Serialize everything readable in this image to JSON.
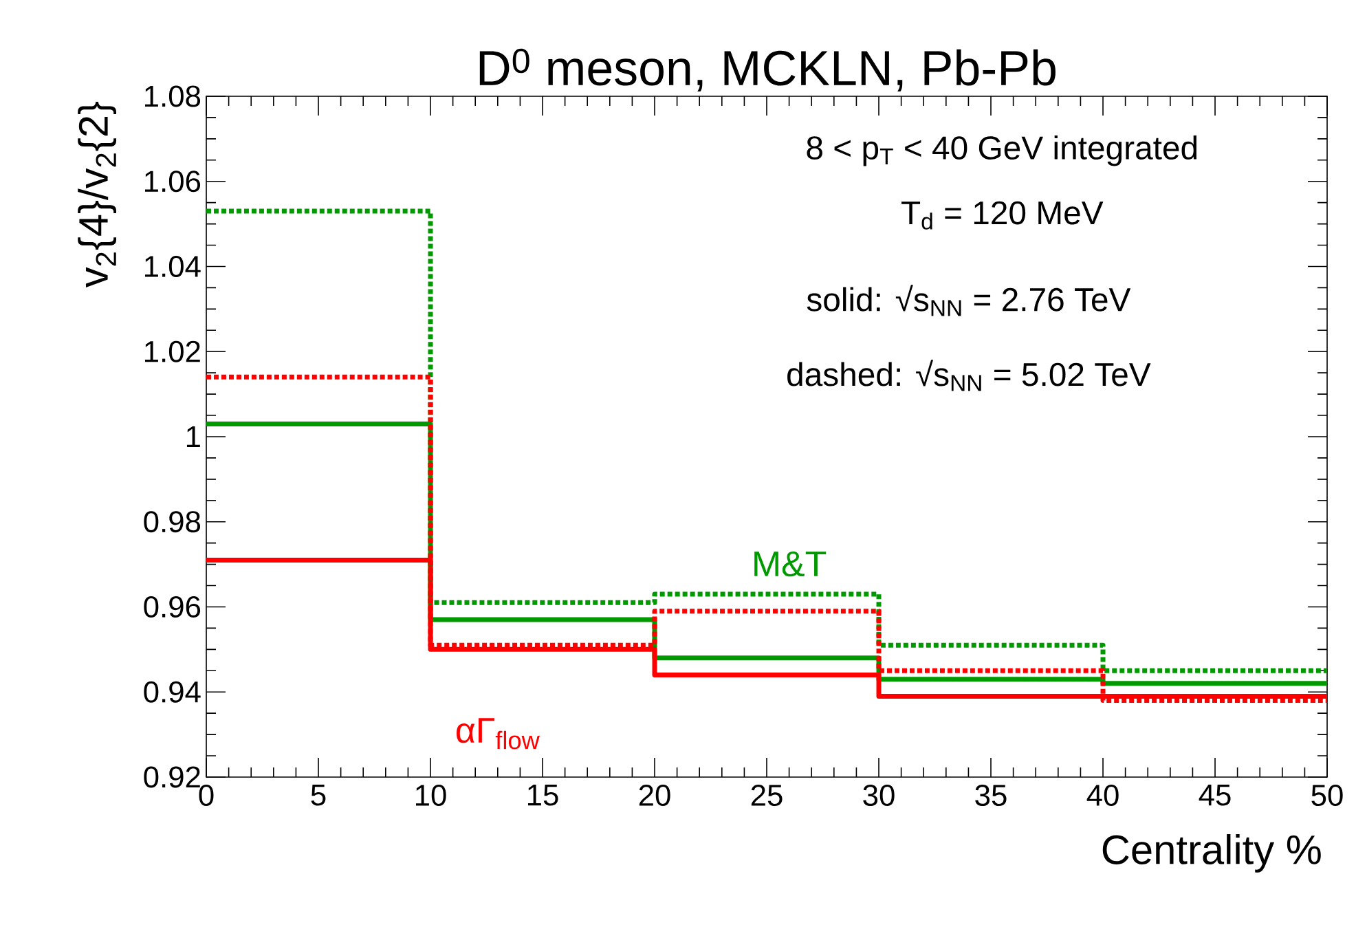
{
  "chart_data": {
    "type": "histogram",
    "title": "D$^{0}$ meson, MCKLN, Pb-Pb",
    "xlabel": "Centrality %",
    "ylabel": "v$_{2}${4}/v$_{2}${2}",
    "bins": [
      0,
      10,
      20,
      30,
      40,
      50
    ],
    "series": [
      {
        "name": "M&T",
        "color": "#009900",
        "line_style": "solid",
        "values": [
          1.003,
          0.957,
          0.948,
          0.943,
          0.942
        ]
      },
      {
        "name": "αΓ$_{flow}$",
        "color": "#ff0000",
        "line_style": "solid",
        "values": [
          0.971,
          0.95,
          0.944,
          0.939,
          0.939
        ]
      },
      {
        "color": "#009900",
        "line_style": "dotted",
        "values": [
          1.053,
          0.961,
          0.963,
          0.951,
          0.945
        ]
      },
      {
        "color": "#ff0000",
        "line_style": "dotted",
        "values": [
          1.014,
          0.951,
          0.959,
          0.945,
          0.938
        ]
      }
    ],
    "xlim": [
      0,
      50
    ],
    "ylim": [
      0.92,
      1.08
    ],
    "xticks": [
      0,
      5,
      10,
      15,
      20,
      25,
      30,
      35,
      40,
      45,
      50
    ],
    "yticks": [
      0.92,
      0.94,
      0.96,
      0.98,
      {
        "value": 1,
        "label": "1"
      },
      1.02,
      1.04,
      1.06,
      1.08
    ],
    "annotations": [
      "8 < p$_{T}$ < 40 GeV integrated",
      "T$_{d}$ = 120 MeV",
      "solid: √s$_{NN}$ = 2.76 TeV",
      "dashed: √s$_{NN}$ = 5.02 TeV"
    ],
    "grid": false
  }
}
